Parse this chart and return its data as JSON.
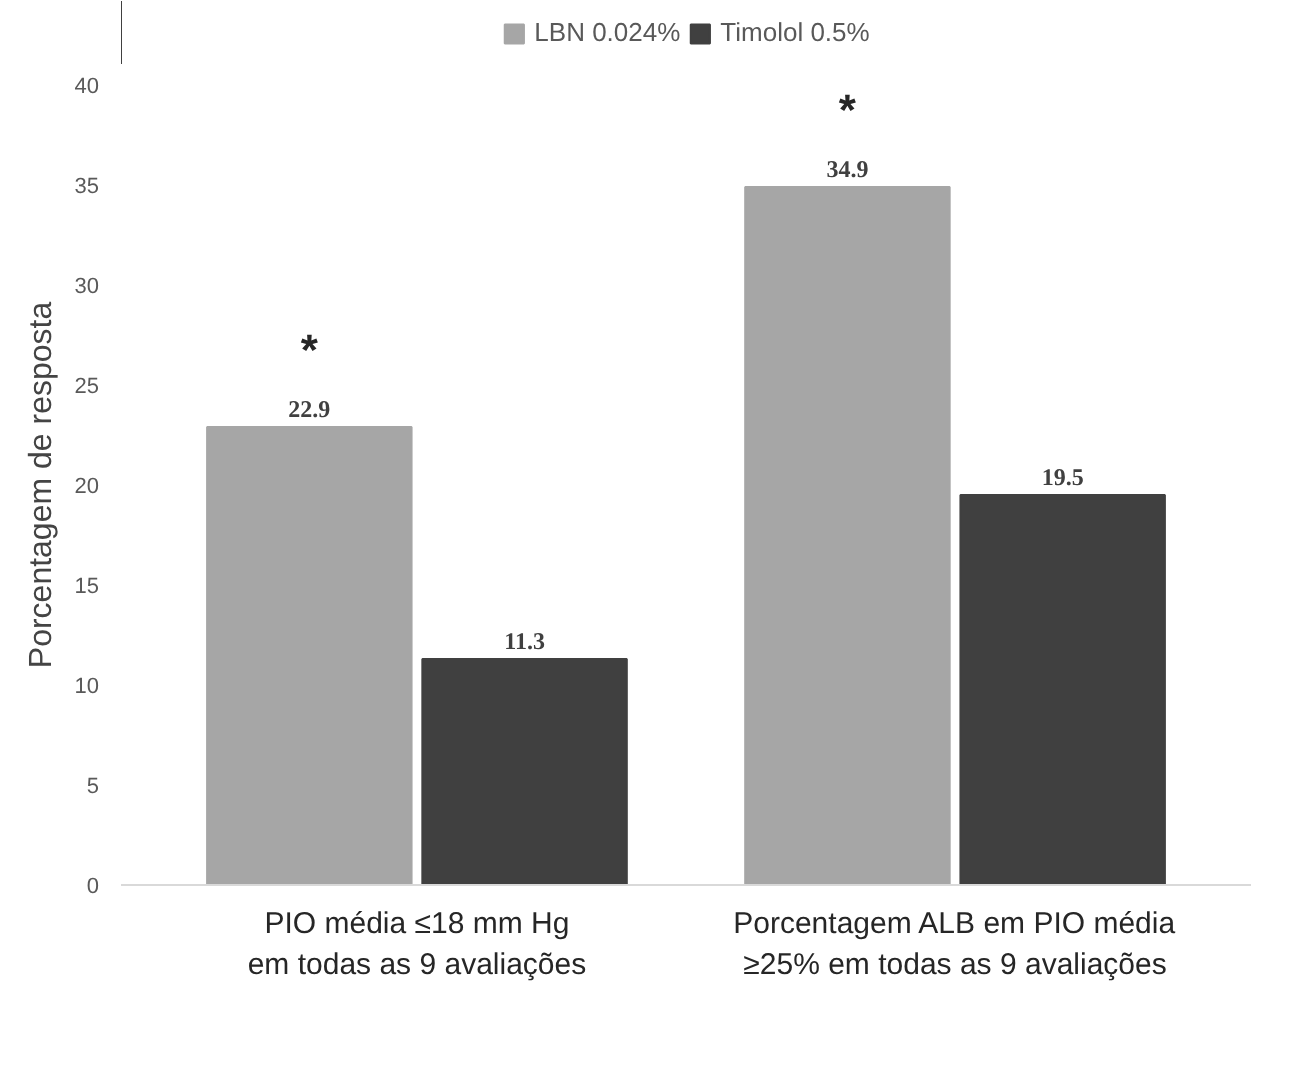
{
  "chart_data": {
    "type": "bar",
    "ylabel": "Porcentagem de resposta",
    "categories": [
      "PIO média ≤18 mm Hg\nem todas as 9 avaliações",
      "Porcentagem ALB em PIO média\n≥25% em todas as 9 avaliações"
    ],
    "series": [
      {
        "name": "LBN 0.024%",
        "color": "#a6a6a6",
        "values": [
          22.9,
          34.9
        ]
      },
      {
        "name": "Timolol 0.5%",
        "color": "#404040",
        "values": [
          11.3,
          19.5
        ]
      }
    ],
    "ylim": [
      0,
      40
    ],
    "yticks": [
      0,
      5,
      10,
      15,
      20,
      25,
      30,
      35,
      40
    ],
    "grid": false,
    "legend": "top",
    "data_labels": true,
    "annotations": [
      "*",
      "*"
    ]
  }
}
